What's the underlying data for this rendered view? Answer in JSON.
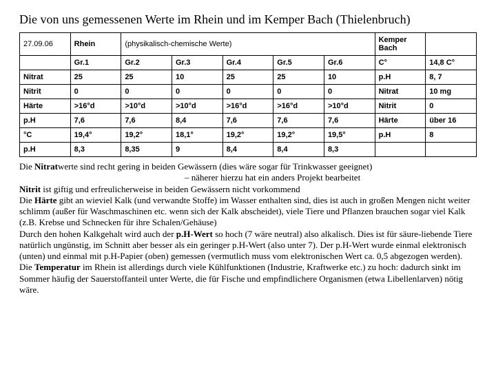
{
  "title": "Die von uns gemessenen Werte im Rhein und im Kemper Bach (Thielenbruch)",
  "table": {
    "rows": [
      [
        "27.09.06",
        "Rhein",
        "(physikalisch-chemische Werte)",
        "",
        "",
        "",
        "",
        "Kemper Bach",
        ""
      ],
      [
        "",
        "Gr.1",
        "Gr.2",
        "Gr.3",
        "Gr.4",
        "Gr.5",
        "Gr.6",
        "C°",
        "14,8 C°"
      ],
      [
        "Nitrat",
        "25",
        "25",
        "10",
        "25",
        "25",
        "10",
        "p.H",
        "8, 7"
      ],
      [
        "Nitrit",
        "0",
        "0",
        "0",
        "0",
        "0",
        "0",
        "Nitrat",
        "10 mg"
      ],
      [
        "Härte",
        ">16°d",
        ">10°d",
        ">10°d",
        ">16°d",
        ">16°d",
        ">10°d",
        "Nitrit",
        "0"
      ],
      [
        "p.H",
        "7,6",
        "7,6",
        "8,4",
        "7,6",
        "7,6",
        "7,6",
        "Härte",
        "über 16"
      ],
      [
        "°C",
        "19,4°",
        "19,2°",
        "18,1°",
        "19,2°",
        "19,2°",
        "19,5°",
        "p.H",
        "8"
      ],
      [
        "p.H",
        "8,3",
        "8,35",
        "9",
        "8,4",
        "8,4",
        "8,3",
        "",
        ""
      ]
    ],
    "bold_map": [
      [
        0,
        1,
        0,
        0,
        0,
        0,
        0,
        1,
        0
      ],
      [
        0,
        1,
        1,
        1,
        1,
        1,
        1,
        1,
        1
      ],
      [
        1,
        1,
        1,
        1,
        1,
        1,
        1,
        1,
        1
      ],
      [
        1,
        1,
        1,
        1,
        1,
        1,
        1,
        1,
        1
      ],
      [
        1,
        1,
        1,
        1,
        1,
        1,
        1,
        1,
        1
      ],
      [
        1,
        1,
        1,
        1,
        1,
        1,
        1,
        1,
        1
      ],
      [
        1,
        1,
        1,
        1,
        1,
        1,
        1,
        1,
        1
      ],
      [
        1,
        1,
        1,
        1,
        1,
        1,
        1,
        0,
        0
      ]
    ],
    "colspan_row0_col2": 5
  },
  "notes": {
    "l1a": "Die ",
    "l1b": "Nitrat",
    "l1c": "werte sind recht gering in beiden Gewässern (dies wäre sogar für Trinkwasser geeignet)",
    "l2": "– näherer hierzu hat ein anders Projekt bearbeitet",
    "l3a": "Nitrit",
    "l3b": " ist giftig und erfreulicherweise in beiden Gewässern nicht vorkommend",
    "l4a": "Die ",
    "l4b": "Härte",
    "l4c": " gibt an wieviel Kalk (und verwandte Stoffe) im Wasser enthalten sind, dies ist auch in großen Mengen nicht weiter schlimm (außer für Waschmaschinen etc. wenn sich der Kalk abscheidet), viele Tiere und Pflanzen brauchen sogar viel Kalk (z.B. Krebse und Schnecken für ihre Schalen/Gehäuse)",
    "l5a": "Durch den hohen Kalkgehalt wird auch der ",
    "l5b": "p.H-Wert",
    "l5c": " so hoch (7 wäre neutral) also alkalisch. Dies ist für säure-liebende Tiere natürlich ungünstig, im Schnitt aber besser als ein geringer p.H-Wert (also unter 7). Der p.H-Wert wurde einmal elektronisch (unten) und einmal mit p.H-Papier (oben) gemessen (vermutlich muss vom elektronischen Wert ca. 0,5 abgezogen werden).",
    "l6a": "Die ",
    "l6b": "Temperatur",
    "l6c": " im Rhein ist allerdings durch viele Kühlfunktionen (Industrie, Kraftwerke etc.) zu hoch: dadurch sinkt im Sommer häufig der Sauerstoffanteil unter Werte, die für Fische und empfindlichere Organismen (etwa Libellenlarven) nötig wäre."
  }
}
